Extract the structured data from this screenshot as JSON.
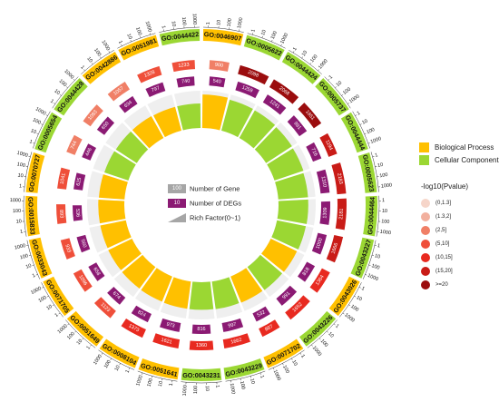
{
  "chart_data": {
    "type": "circular-bar",
    "terms": [
      {
        "id": "GO:0046907",
        "category": "Biological Process",
        "genes": 1000,
        "degs": 900,
        "pvalue_bin": "(2,5]",
        "rich_factor": 0.9
      },
      {
        "id": "GO:0005622",
        "category": "Cellular Component",
        "genes": 1000,
        "degs": 2098,
        "pvalue_bin": ">=20",
        "rich_factor": 0.86
      },
      {
        "id": "GO:0044424",
        "category": "Cellular Component",
        "genes": 1000,
        "degs": 2068,
        "pvalue_bin": ">=20",
        "rich_factor": 0.85
      },
      {
        "id": "GO:0005737",
        "category": "Cellular Component",
        "genes": 1000,
        "degs": 1651,
        "pvalue_bin": ">=20",
        "rich_factor": 0.83
      },
      {
        "id": "GO:0044444",
        "category": "Cellular Component",
        "genes": 1000,
        "degs": 1194,
        "pvalue_bin": "(15,20]",
        "rich_factor": 0.82
      },
      {
        "id": "GO:0005623",
        "category": "Cellular Component",
        "genes": 1000,
        "degs": 2183,
        "pvalue_bin": "(15,20]",
        "rich_factor": 0.8
      },
      {
        "id": "GO:0044464",
        "category": "Cellular Component",
        "genes": 1000,
        "degs": 2181,
        "pvalue_bin": "(15,20]",
        "rich_factor": 0.8
      },
      {
        "id": "GO:0043227",
        "category": "Cellular Component",
        "genes": 1000,
        "degs": 1666,
        "pvalue_bin": "(15,20]",
        "rich_factor": 0.79
      },
      {
        "id": "GO:0043026",
        "category": "Biological Process",
        "genes": 1000,
        "degs": 1364,
        "pvalue_bin": "(10,15]",
        "rich_factor": 0.78
      },
      {
        "id": "GO:0043226",
        "category": "Cellular Component",
        "genes": 1000,
        "degs": 1652,
        "pvalue_bin": "(10,15]",
        "rich_factor": 0.77
      },
      {
        "id": "GO:0071702",
        "category": "Biological Process",
        "genes": 1000,
        "degs": 887,
        "pvalue_bin": "(10,15]",
        "rich_factor": 0.76
      },
      {
        "id": "GO:0043229",
        "category": "Cellular Component",
        "genes": 1000,
        "degs": 1662,
        "pvalue_bin": "(10,15]",
        "rich_factor": 0.75
      },
      {
        "id": "GO:0043231",
        "category": "Cellular Component",
        "genes": 1000,
        "degs": 1360,
        "pvalue_bin": "(10,15]",
        "rich_factor": 0.74
      },
      {
        "id": "GO:0051641",
        "category": "Biological Process",
        "genes": 1000,
        "degs": 1621,
        "pvalue_bin": "(10,15]",
        "rich_factor": 0.74
      },
      {
        "id": "GO:0008104",
        "category": "Biological Process",
        "genes": 1000,
        "degs": 1373,
        "pvalue_bin": "(10,15]",
        "rich_factor": 0.73
      },
      {
        "id": "GO:0051649",
        "category": "Biological Process",
        "genes": 1000,
        "degs": 1123,
        "pvalue_bin": "(5,10]",
        "rich_factor": 0.72
      },
      {
        "id": "GO:0071705",
        "category": "Biological Process",
        "genes": 1000,
        "degs": 1096,
        "pvalue_bin": "(5,10]",
        "rich_factor": 0.71
      },
      {
        "id": "GO:0033043",
        "category": "Biological Process",
        "genes": 1000,
        "degs": 933,
        "pvalue_bin": "(5,10]",
        "rich_factor": 0.7
      },
      {
        "id": "GO:0015833",
        "category": "Biological Process",
        "genes": 1000,
        "degs": 893,
        "pvalue_bin": "(5,10]",
        "rich_factor": 0.7
      },
      {
        "id": "GO:0070727",
        "category": "Biological Process",
        "genes": 1000,
        "degs": 1041,
        "pvalue_bin": "(5,10]",
        "rich_factor": 0.69
      },
      {
        "id": "GO:0005654",
        "category": "Cellular Component",
        "genes": 1000,
        "degs": 744,
        "pvalue_bin": "(2,5]",
        "rich_factor": 0.68
      },
      {
        "id": "GO:0044428",
        "category": "Cellular Component",
        "genes": 1000,
        "degs": 1083,
        "pvalue_bin": "(2,5]",
        "rich_factor": 0.67
      },
      {
        "id": "GO:0042886",
        "category": "Biological Process",
        "genes": 1000,
        "degs": 1057,
        "pvalue_bin": "(2,5]",
        "rich_factor": 0.67
      },
      {
        "id": "GO:0051981",
        "category": "Biological Process",
        "genes": 1000,
        "degs": 1328,
        "pvalue_bin": "(5,10]",
        "rich_factor": 0.66
      },
      {
        "id": "GO:0044422",
        "category": "Cellular Component",
        "genes": 1000,
        "degs": 1233,
        "pvalue_bin": "(5,10]",
        "rich_factor": 0.66
      }
    ],
    "legend": [
      {
        "label": "Biological Process",
        "color": "#ffc000"
      },
      {
        "label": "Cellular Component",
        "color": "#9bd733"
      }
    ],
    "center_legend": [
      {
        "swatch_text": "100",
        "label": "Number of Gene",
        "color": "#a6a6a6"
      },
      {
        "swatch_text": "10",
        "label": "Number of DEGs",
        "color": "#8b1a73"
      },
      {
        "swatch_text": "",
        "label": "Rich Factor(0~1)",
        "color": "#a6a6a6"
      }
    ],
    "pvalue_title": "-log10(Pvalue)",
    "pvalue_bins": [
      {
        "label": "(0,1.3]",
        "color": "#f6d5c9"
      },
      {
        "label": "(1.3,2]",
        "color": "#f2b09e"
      },
      {
        "label": "(2,5]",
        "color": "#f07f66"
      },
      {
        "label": "(5,10]",
        "color": "#ef4f3a"
      },
      {
        "label": "(10,15]",
        "color": "#e82a20"
      },
      {
        "label": "(15,20]",
        "color": "#c91c17"
      },
      {
        "label": ">=20",
        "color": "#9b0d0e"
      }
    ],
    "tick_labels": [
      "1",
      "10",
      "100",
      "1000"
    ]
  }
}
